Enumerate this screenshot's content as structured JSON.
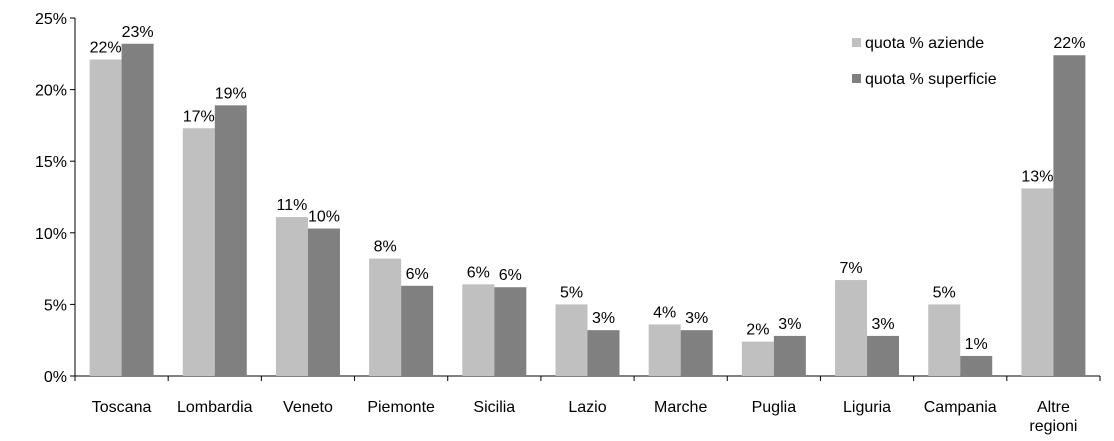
{
  "chart_data": {
    "type": "bar",
    "categories": [
      "Toscana",
      "Lombardia",
      "Veneto",
      "Piemonte",
      "Sicilia",
      "Lazio",
      "Marche",
      "Puglia",
      "Liguria",
      "Campania",
      "Altre regioni"
    ],
    "series": [
      {
        "name": "quota % aziende",
        "color": "#c0c0c0",
        "values": [
          22.1,
          17.3,
          11.1,
          8.2,
          6.4,
          5.0,
          3.6,
          2.4,
          6.7,
          5.0,
          13.1
        ],
        "value_labels": [
          "22%",
          "17%",
          "11%",
          "8%",
          "6%",
          "5%",
          "4%",
          "2%",
          "7%",
          "5%",
          "13%"
        ]
      },
      {
        "name": "quota % superficie",
        "color": "#808080",
        "values": [
          23.2,
          18.9,
          10.3,
          6.3,
          6.2,
          3.2,
          3.2,
          2.8,
          2.8,
          1.4,
          22.4
        ],
        "value_labels": [
          "23%",
          "19%",
          "10%",
          "6%",
          "6%",
          "3%",
          "3%",
          "3%",
          "3%",
          "1%",
          "22%"
        ]
      }
    ],
    "ylim": [
      0,
      25
    ],
    "yticks": [
      {
        "value": 0,
        "label": "0%"
      },
      {
        "value": 5,
        "label": "5%"
      },
      {
        "value": 10,
        "label": "10%"
      },
      {
        "value": 15,
        "label": "15%"
      },
      {
        "value": 20,
        "label": "20%"
      },
      {
        "value": 25,
        "label": "25%"
      }
    ],
    "grid": false,
    "legend": "upper right"
  }
}
